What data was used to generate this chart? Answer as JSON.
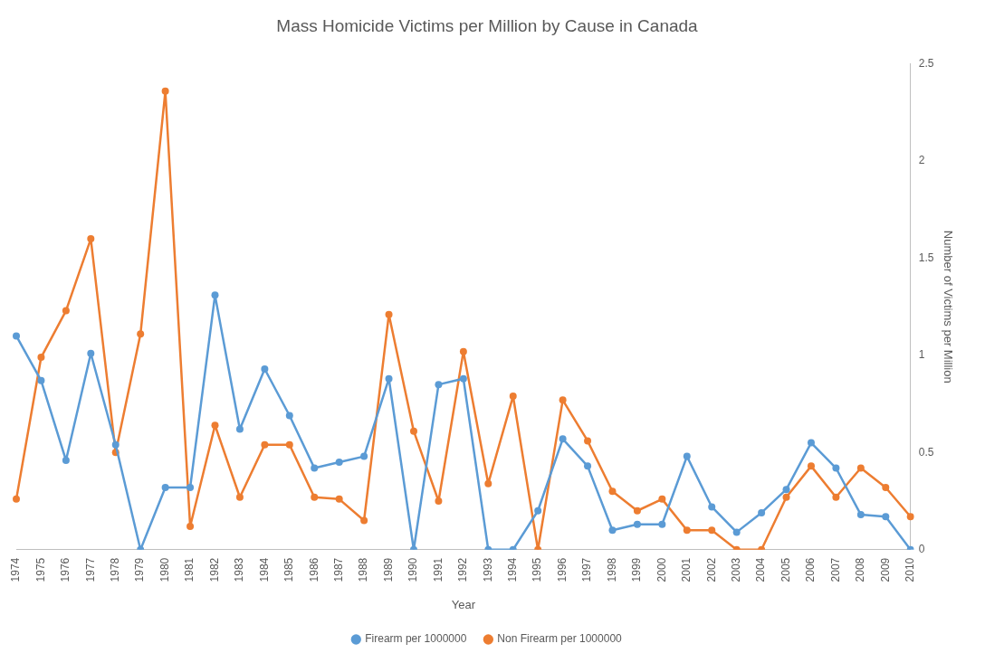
{
  "chart_data": {
    "type": "line",
    "title": "Mass Homicide Victims per Million by Cause in Canada",
    "xlabel": "Year",
    "ylabel": "Number of Victims per Million",
    "categories": [
      "1974",
      "1975",
      "1976",
      "1977",
      "1978",
      "1979",
      "1980",
      "1981",
      "1982",
      "1983",
      "1984",
      "1985",
      "1986",
      "1987",
      "1988",
      "1989",
      "1990",
      "1991",
      "1992",
      "1993",
      "1994",
      "1995",
      "1996",
      "1997",
      "1998",
      "1999",
      "2000",
      "2001",
      "2002",
      "2003",
      "2004",
      "2005",
      "2006",
      "2007",
      "2008",
      "2009",
      "2010"
    ],
    "series": [
      {
        "name": "Firearm per 1000000",
        "color": "#5b9bd5",
        "values": [
          1.1,
          0.87,
          0.46,
          1.01,
          0.54,
          0,
          0.32,
          0.32,
          1.31,
          0.62,
          0.93,
          0.69,
          0.42,
          0.45,
          0.48,
          0.88,
          0,
          0.85,
          0.88,
          0,
          0,
          0.2,
          0.57,
          0.43,
          0.1,
          0.13,
          0.13,
          0.48,
          0.22,
          0.09,
          0.19,
          0.31,
          0.55,
          0.42,
          0.18,
          0.17,
          0
        ]
      },
      {
        "name": "Non Firearm per 1000000",
        "color": "#ed7d31",
        "values": [
          0.26,
          0.99,
          1.23,
          1.6,
          0.5,
          1.11,
          2.36,
          0.12,
          0.64,
          0.27,
          0.54,
          0.54,
          0.27,
          0.26,
          0.15,
          1.21,
          0.61,
          0.25,
          1.02,
          0.34,
          0.79,
          0,
          0.77,
          0.56,
          0.3,
          0.2,
          0.26,
          0.1,
          0.1,
          0,
          0,
          0.27,
          0.43,
          0.27,
          0.42,
          0.32,
          0.17
        ]
      }
    ],
    "ylim": [
      0,
      2.5
    ],
    "yticks": [
      0,
      0.5,
      1,
      1.5,
      2,
      2.5
    ],
    "grid": false,
    "legend": "bottom",
    "marker": "circle",
    "line_style": "solid"
  }
}
